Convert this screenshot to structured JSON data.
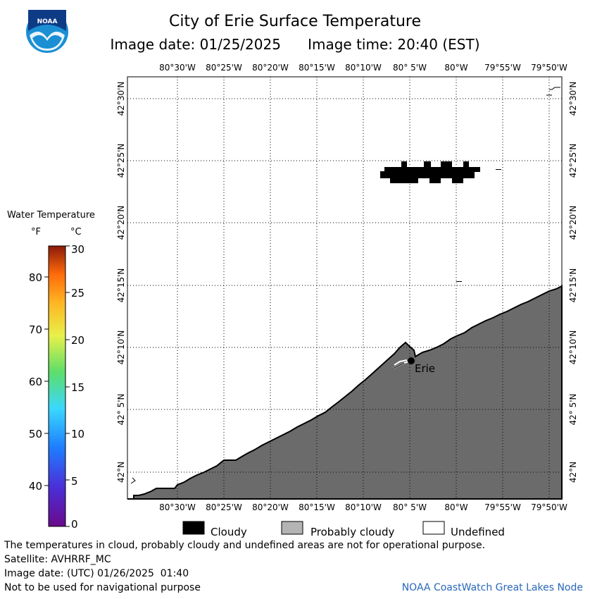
{
  "header": {
    "title": "City of Erie Surface Temperature",
    "date_label": "Image date: 01/25/2025",
    "time_label": "Image time: 20:40 (EST)",
    "logo_text": "NOAA"
  },
  "map": {
    "longitudes": [
      "80°30'W",
      "80°25'W",
      "80°20'W",
      "80°15'W",
      "80°10'W",
      "80° 5'W",
      "80°W",
      "79°55'W",
      "79°50'W"
    ],
    "latitudes": [
      "42°30'N",
      "42°25'N",
      "42°20'N",
      "42°15'N",
      "42°10'N",
      "42° 5'N",
      "42°N"
    ],
    "city_label": "Erie",
    "colors": {
      "land": "#6b6b6b",
      "cloud": "#000000",
      "grid": "#000000"
    }
  },
  "legend": {
    "title": "Water Temperature",
    "unit_f": "°F",
    "unit_c": "°C",
    "f_ticks": [
      "80",
      "70",
      "60",
      "50",
      "40"
    ],
    "c_ticks": [
      "30",
      "25",
      "20",
      "15",
      "10",
      "5",
      "0"
    ],
    "categories": [
      "Cloudy",
      "Probably cloudy",
      "Undefined"
    ],
    "category_colors": {
      "cloudy": "#000000",
      "probably_cloudy": "#b4b4b4",
      "undefined": "#ffffff"
    }
  },
  "footer": {
    "disclaimer": "The temperatures in cloud, probably cloudy and undefined areas are not for operational purpose.",
    "satellite": "Satellite: AVHRRF_MC",
    "utc_date": "Image date: (UTC) 01/26/2025  01:40",
    "nav_warning": "Not to be used for navigational purpose",
    "credit": "NOAA CoastWatch Great Lakes Node"
  }
}
